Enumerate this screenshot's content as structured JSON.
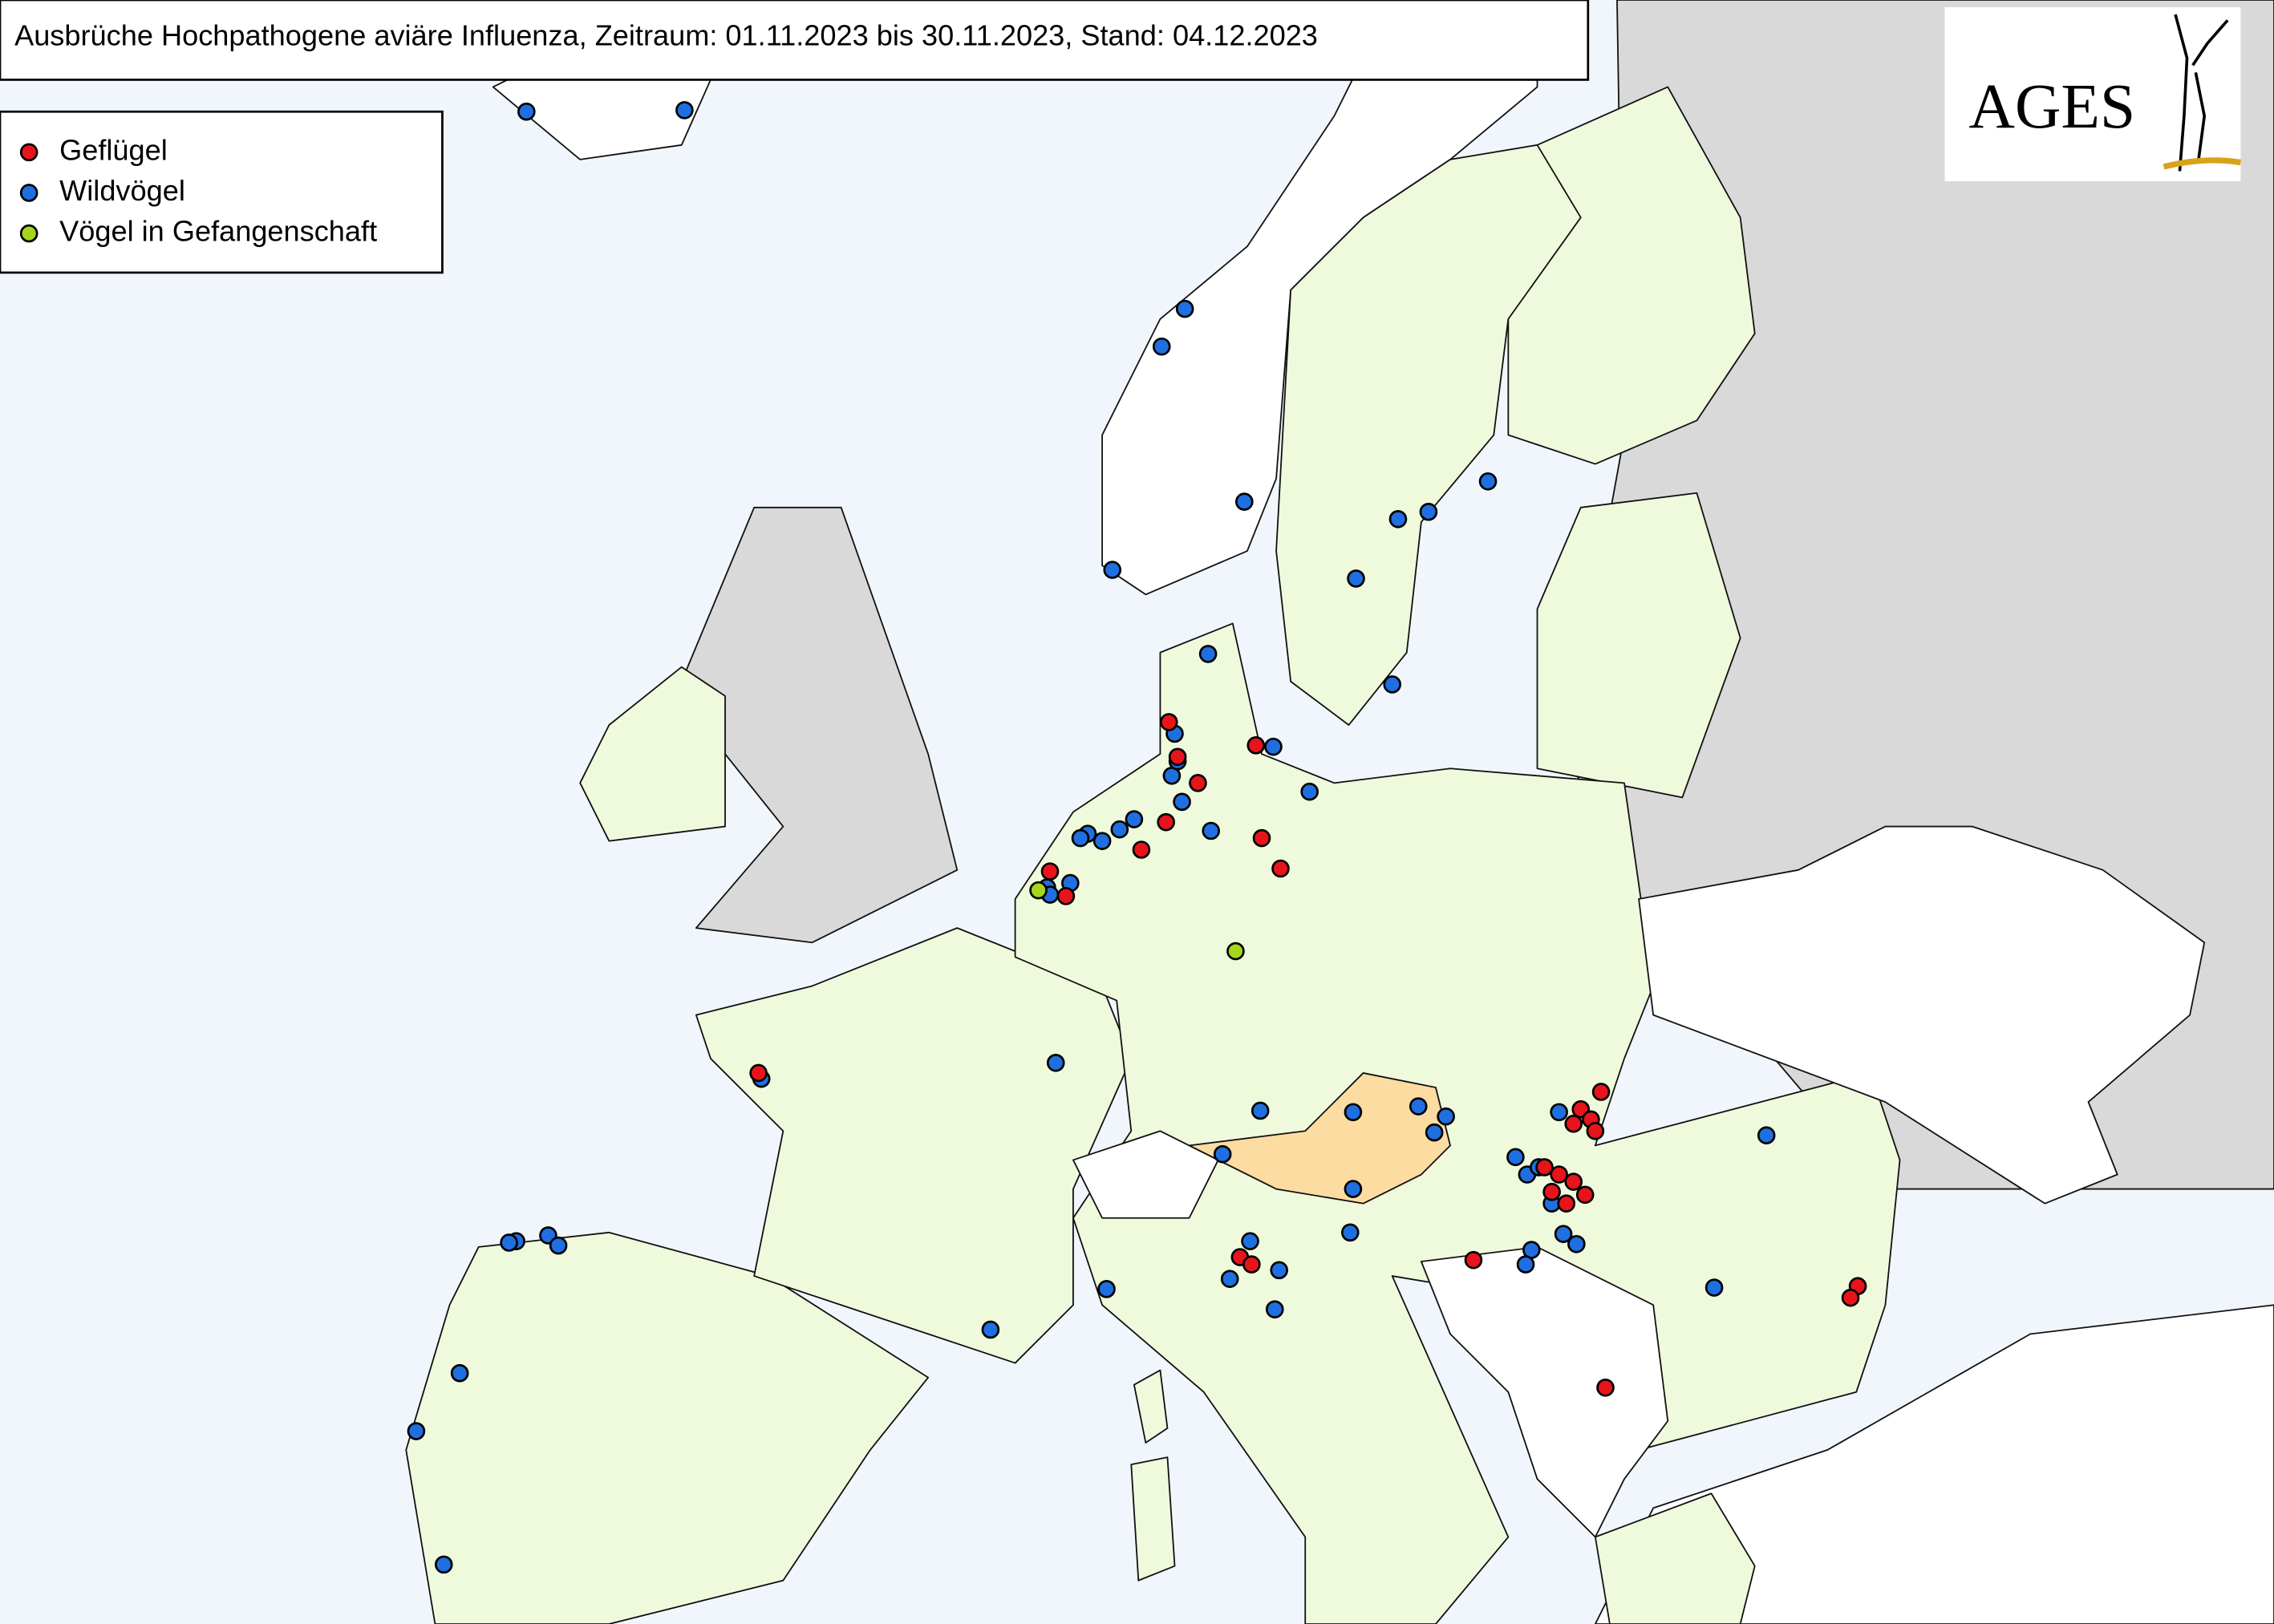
{
  "title": "Ausbrüche Hochpathogene aviäre Influenza, Zeitraum: 01.11.2023 bis 30.11.2023, Stand: 04.12.2023",
  "legend": [
    {
      "label": "Geflügel",
      "color": "#e8141b"
    },
    {
      "label": "Wildvögel",
      "color": "#1f6fe0"
    },
    {
      "label": "Vögel in Gefangenschaft",
      "color": "#a6d61c"
    }
  ],
  "logo": {
    "text": "AGES"
  }
}
